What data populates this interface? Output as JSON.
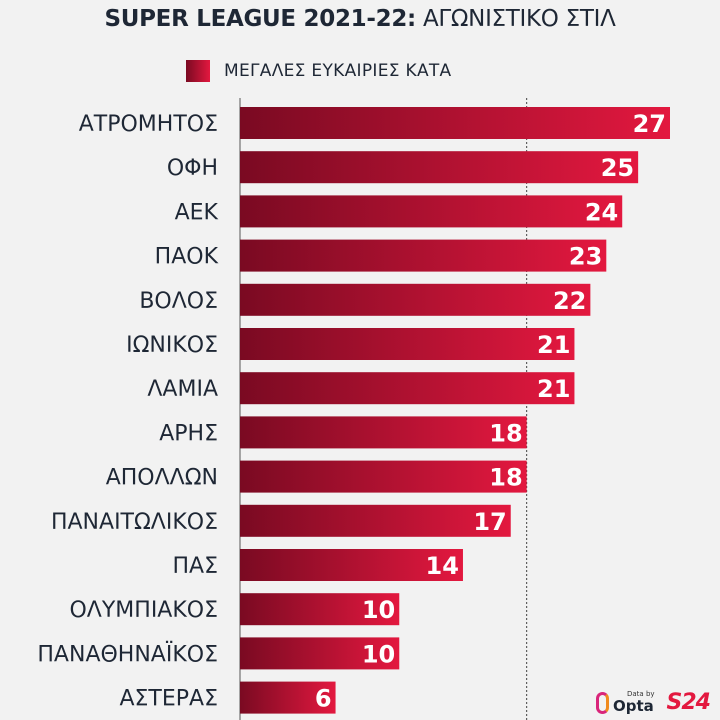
{
  "title": {
    "bold": "SUPER LEAGUE 2021-22:",
    "light": "ΑΓΩΝΙΣΤΙΚΟ ΣΤΙΛ"
  },
  "colors": {
    "bar_dark": "#7a0a22",
    "bar_light": "#e3183f",
    "text": "#1e2735",
    "background": "#f2f2f2"
  },
  "chart_data": {
    "type": "bar",
    "orientation": "horizontal",
    "title": "SUPER LEAGUE 2021-22: ΑΓΩΝΙΣΤΙΚΟ ΣΤΙΛ",
    "legend": [
      "ΜΕΓΑΛΕΣ ΕΥΚΑΙΡΙΕΣ ΚΑΤΑ"
    ],
    "legend_position": "top",
    "categories": [
      "ΑΤΡΟΜΗΤΟΣ",
      "ΟΦΗ",
      "ΑΕΚ",
      "ΠΑΟΚ",
      "ΒΟΛΟΣ",
      "ΙΩΝΙΚΟΣ",
      "ΛΑΜΙΑ",
      "ΑΡΗΣ",
      "ΑΠΟΛΛΩΝ",
      "ΠΑΝΑΙΤΩΛΙΚΟΣ",
      "ΠΑΣ",
      "ΟΛΥΜΠΙΑΚΟΣ",
      "ΠΑΝΑΘΗΝΑΪΚΟΣ",
      "ΑΣΤΕΡΑΣ"
    ],
    "values": [
      27,
      25,
      24,
      23,
      22,
      21,
      21,
      18,
      18,
      17,
      14,
      10,
      10,
      6
    ],
    "xlim": [
      0,
      27
    ],
    "reference_line": 18,
    "xlabel": "",
    "ylabel": "",
    "grid": false
  },
  "footer": {
    "data_by": "Data by",
    "provider": "Opta",
    "brand": "S24"
  }
}
